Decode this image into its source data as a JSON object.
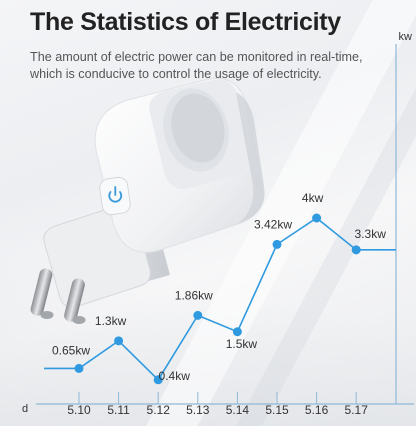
{
  "header": {
    "title": "The Statistics of Electricity",
    "subtitle": "The amount of electric power can be monitored in real-time, which is conducive to control the usage of electricity."
  },
  "chart_data": {
    "type": "line",
    "y_unit_label": "kw",
    "x_unit_label": "d",
    "categories": [
      "5.10",
      "5.11",
      "5.12",
      "5.13",
      "5.14",
      "5.15",
      "5.16",
      "5.17"
    ],
    "values": [
      0.65,
      1.3,
      0.4,
      1.86,
      1.5,
      3.42,
      4,
      3.3
    ],
    "point_labels": [
      "0.65kw",
      "1.3kw",
      "0.4kw",
      "1.86kw",
      "1.5kw",
      "3.42kw",
      "4kw",
      "3.3kw"
    ],
    "ylim": [
      0,
      5
    ],
    "grid": false,
    "colors": {
      "line": "#2f9ae0",
      "marker": "#2f9ae0",
      "axis": "#8fb8d8"
    }
  },
  "product": {
    "icon": "power-icon"
  }
}
